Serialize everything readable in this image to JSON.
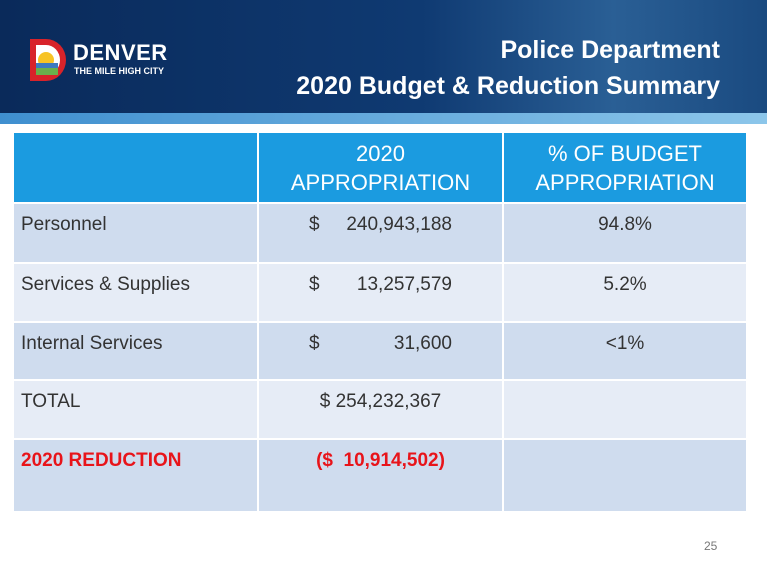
{
  "header": {
    "brand": "DENVER",
    "tagline": "THE MILE HIGH CITY",
    "title_lines": [
      "Police Department",
      "2020 Budget & Reduction Summary"
    ]
  },
  "table": {
    "columns": [
      {
        "lines": []
      },
      {
        "lines": [
          "2020",
          "APPROPRIATION"
        ]
      },
      {
        "lines": [
          "% OF BUDGET",
          "APPROPRIATION"
        ]
      }
    ],
    "rows": [
      {
        "label": "Personnel",
        "appropriation": {
          "currency": "$",
          "amount": "240,943,188"
        },
        "percent": "94.8%"
      },
      {
        "label": "Services & Supplies",
        "appropriation": {
          "currency": "$",
          "amount": "13,257,579"
        },
        "percent": "5.2%"
      },
      {
        "label": "Internal Services",
        "appropriation": {
          "currency": "$",
          "amount": "31,600"
        },
        "percent": "<1%"
      },
      {
        "label": "TOTAL",
        "appropriation": {
          "text": "$ 254,232,367"
        }
      },
      {
        "label": "2020 REDUCTION",
        "appropriation": {
          "text": "($  10,914,502)"
        },
        "highlight": true
      }
    ]
  },
  "footer": {
    "page_number": "25"
  }
}
